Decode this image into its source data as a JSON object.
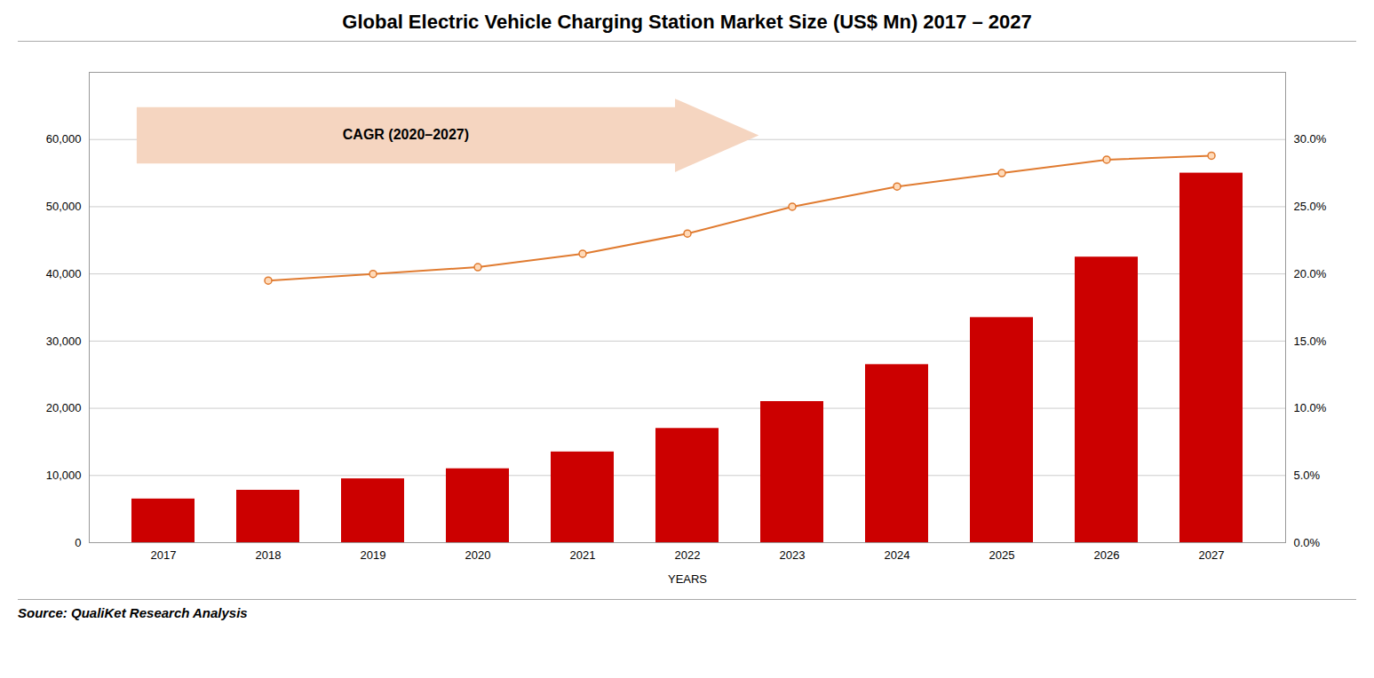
{
  "chart_data": {
    "type": "bar",
    "title": "Global Electric Vehicle Charging Station Market Size (US$ Mn) 2017 – 2027",
    "xlabel": "YEARS",
    "source": "Source: QualiKet Research Analysis",
    "annotations": [
      "CAGR (2020–2027)"
    ],
    "categories": [
      "2017",
      "2018",
      "2019",
      "2020",
      "2021",
      "2022",
      "2023",
      "2024",
      "2025",
      "2026",
      "2027"
    ],
    "series": [
      {
        "type": "bar",
        "color": "#CC0000",
        "values": [
          6500,
          7800,
          9500,
          11000,
          13500,
          17000,
          21000,
          26500,
          33500,
          42500,
          55000
        ]
      },
      {
        "type": "line",
        "axis": "y2",
        "color": "#E07B30",
        "marker": "circle",
        "values": [
          null,
          19.5,
          20.0,
          20.5,
          21.5,
          23.0,
          25.0,
          26.5,
          27.5,
          28.5,
          28.8
        ]
      }
    ],
    "ylim": [
      0,
      70000
    ],
    "yticks": [
      0,
      {
        "value": 10000,
        "label": "10,000"
      },
      {
        "value": 20000,
        "label": "20,000"
      },
      {
        "value": 30000,
        "label": "30,000"
      },
      {
        "value": 40000,
        "label": "40,000"
      },
      {
        "value": 50000,
        "label": "50,000"
      },
      {
        "value": 60000,
        "label": "60,000"
      }
    ],
    "y2lim": [
      0,
      35
    ],
    "y2ticks": [
      {
        "value": 0,
        "label": "0.0%"
      },
      {
        "value": 5,
        "label": "5.0%"
      },
      {
        "value": 10,
        "label": "10.0%"
      },
      {
        "value": 15,
        "label": "15.0%"
      },
      {
        "value": 20,
        "label": "20.0%"
      },
      {
        "value": 25,
        "label": "25.0%"
      },
      {
        "value": 30,
        "label": "30.0%"
      }
    ],
    "grid": true
  }
}
